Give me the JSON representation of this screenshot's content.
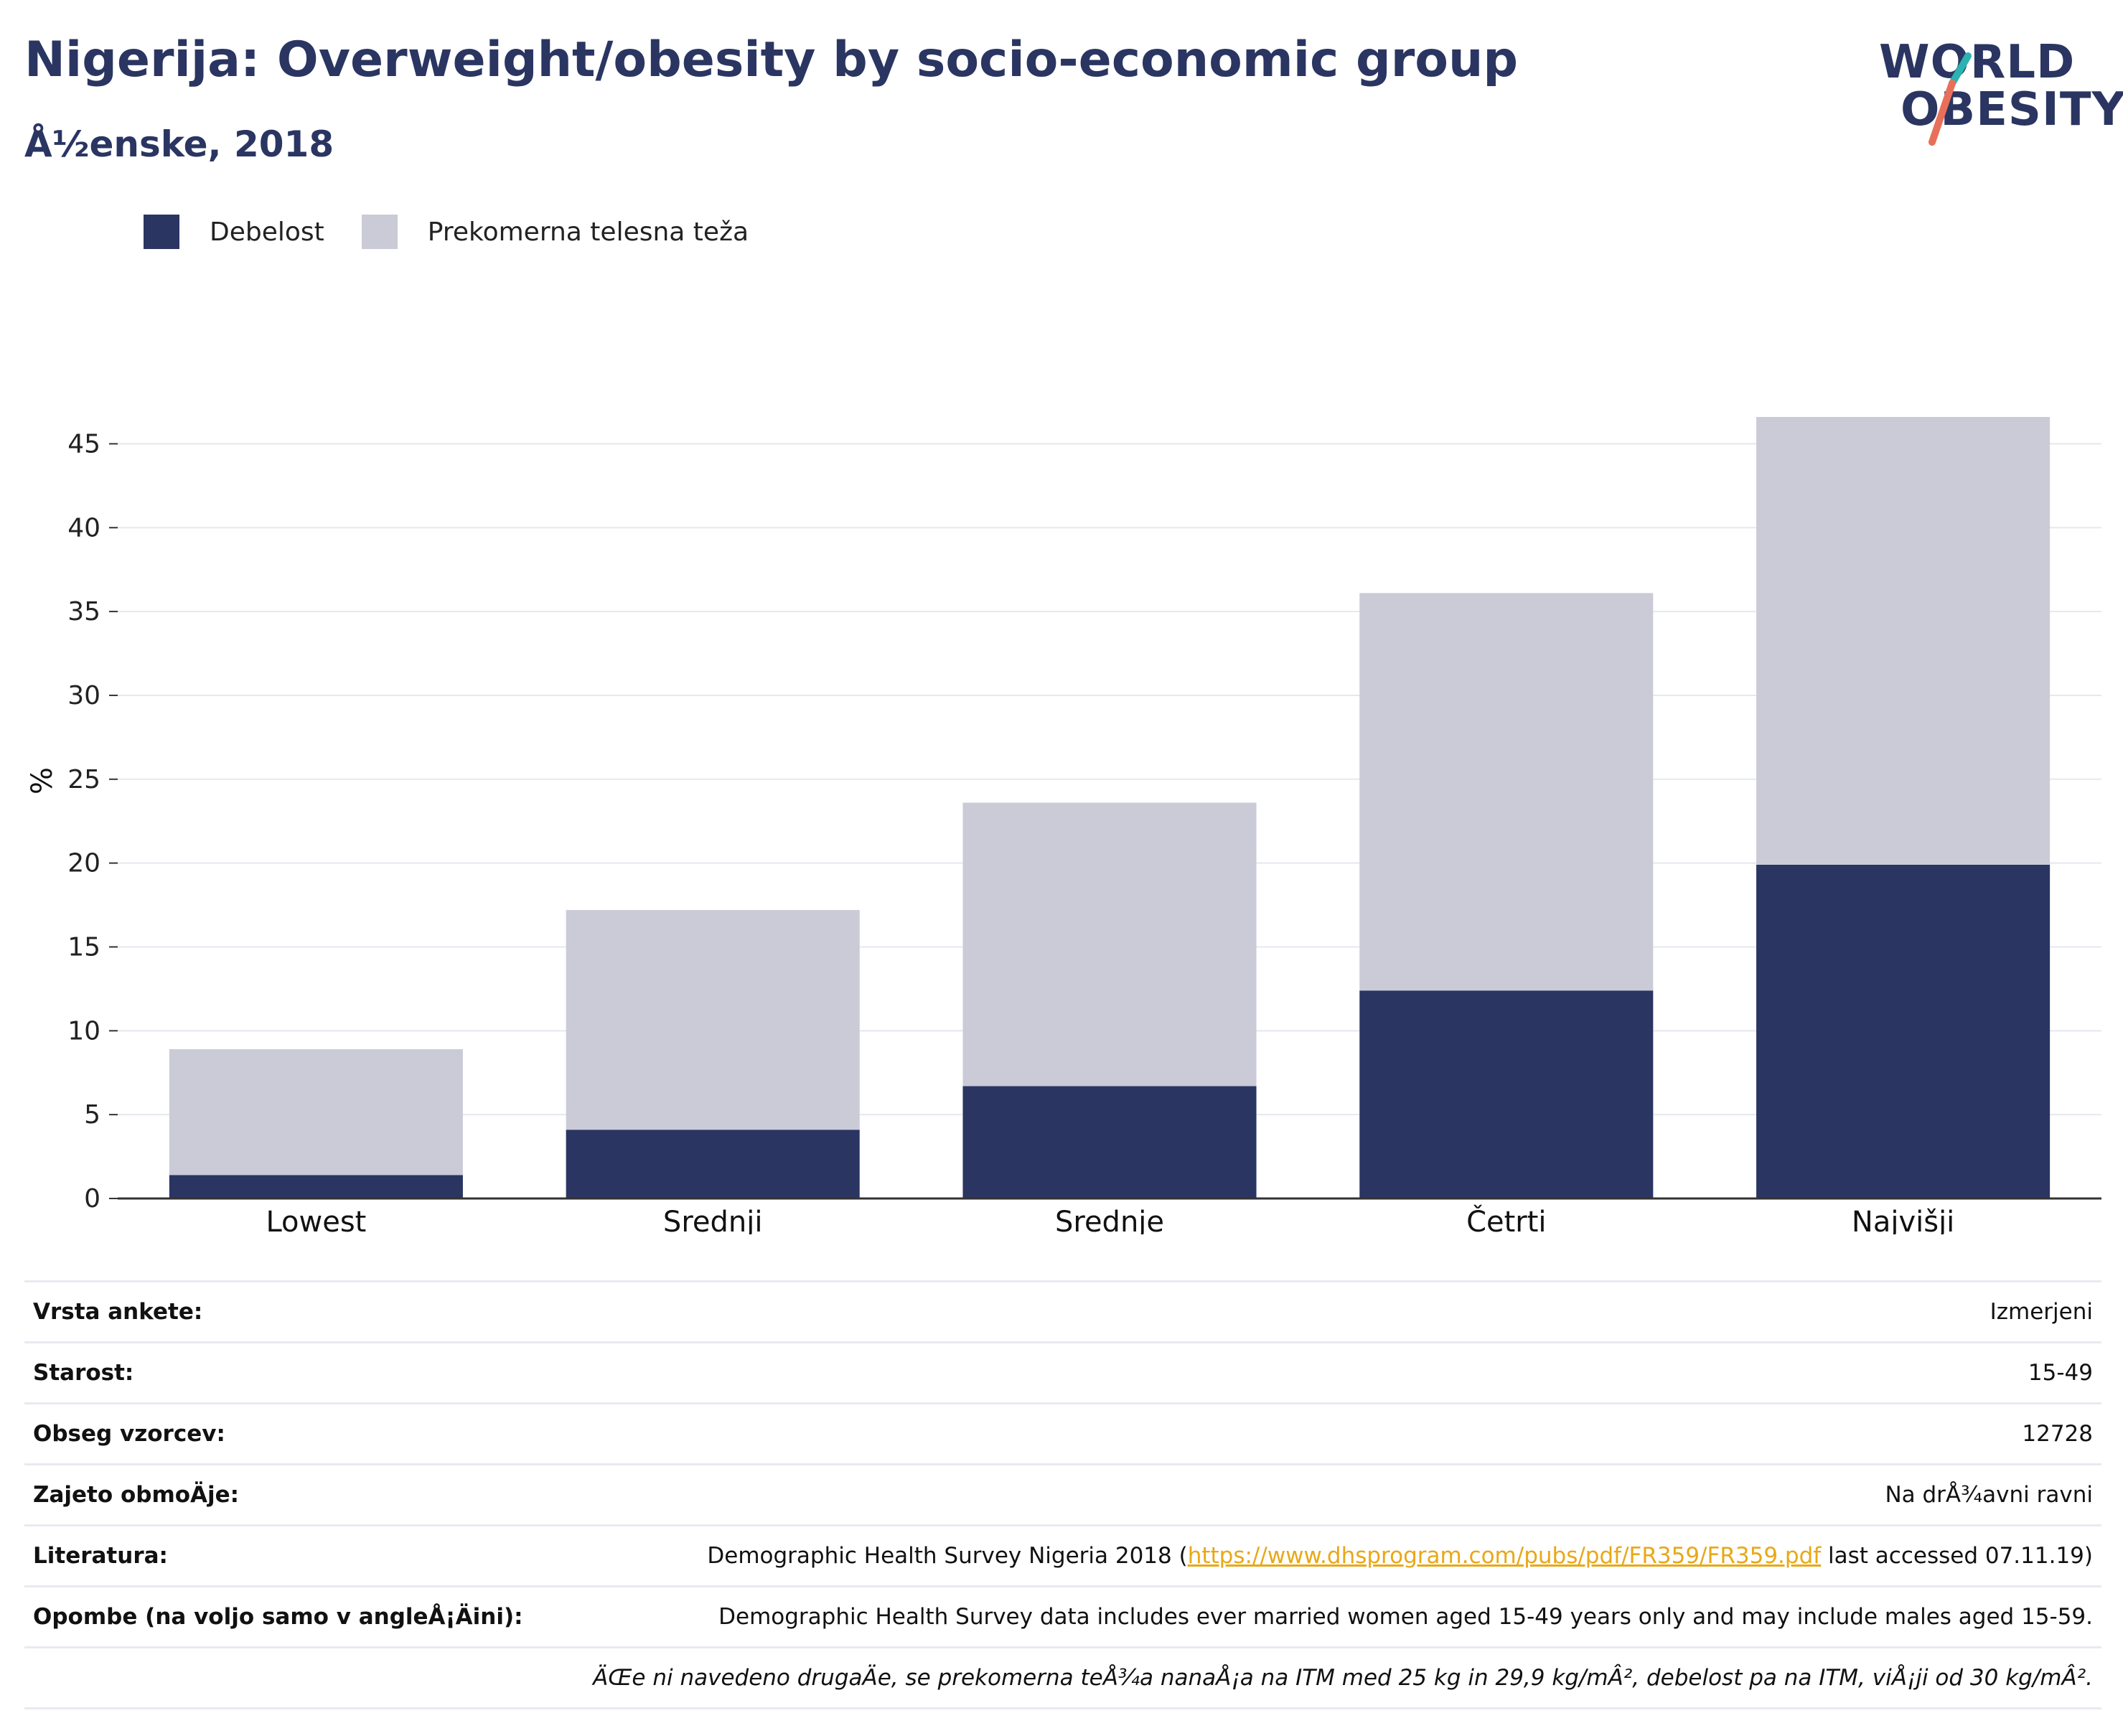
{
  "header": {
    "title": "Nigerija: Overweight/obesity by socio-economic group",
    "subtitle": "Å½enske, 2018"
  },
  "logo": {
    "line1": "WORLD",
    "line2": "OBESITY",
    "slash_colors": [
      "#2ab3b1",
      "#e8705a"
    ]
  },
  "legend": [
    {
      "label": "Debelost",
      "color": "#2a3562"
    },
    {
      "label": "Prekomerna telesna teža",
      "color": "#cacbd7"
    }
  ],
  "chart_data": {
    "type": "bar",
    "stacked": true,
    "categories": [
      "Lowest",
      "Srednji",
      "Srednje",
      "Četrti",
      "Najvišji"
    ],
    "series": [
      {
        "name": "Debelost",
        "values": [
          1.4,
          4.1,
          6.7,
          12.4,
          19.9
        ],
        "color": "#2a3562"
      },
      {
        "name": "Prekomerna telesna teža",
        "values": [
          7.5,
          13.1,
          16.9,
          23.7,
          26.7
        ],
        "color": "#cacbd7"
      }
    ],
    "ylabel": "%",
    "xlabel": "",
    "ylim": [
      0,
      47.5
    ],
    "yticks": [
      0,
      5,
      10,
      15,
      20,
      25,
      30,
      35,
      40,
      45
    ],
    "grid": true,
    "legend_position": "top-left"
  },
  "meta": {
    "rows": [
      {
        "label": "Vrsta ankete:",
        "value": "Izmerjeni"
      },
      {
        "label": "Starost:",
        "value": "15-49"
      },
      {
        "label": "Obseg vzorcev:",
        "value": "12728"
      },
      {
        "label": "Zajeto obmoÄje:",
        "value": "Na drÅ¾avni ravni"
      },
      {
        "label": "Opombe (na voljo samo v angleÅ¡Äini):",
        "value": "Demographic Health Survey data includes ever married women aged 15-49 years only and may include males aged 15-59."
      }
    ],
    "literature": {
      "label": "Literatura:",
      "prefix": "Demographic Health Survey Nigeria 2018 (",
      "link": "https://www.dhsprogram.com/pubs/pdf/FR359/FR359.pdf",
      "suffix": " last accessed 07.11.19)"
    },
    "footnote": "ÄŒe ni navedeno drugaÄe, se prekomerna teÅ¾a nanaÅ¡a na ITM med 25 kg in 29,9 kg/mÂ², debelost pa na ITM, viÅ¡ji od 30 kg/mÂ²."
  }
}
